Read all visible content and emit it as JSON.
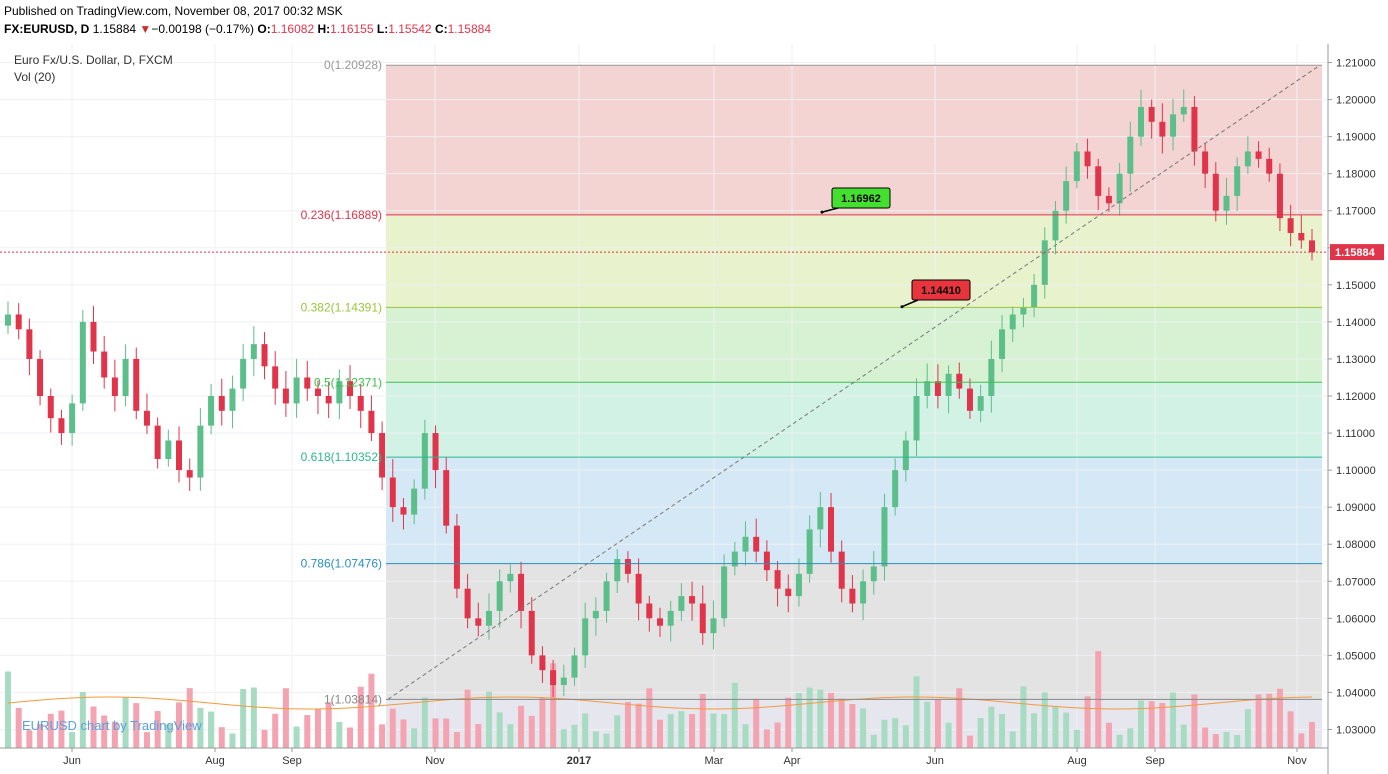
{
  "header": {
    "published": "Published on TradingView.com, November 08, 2017 00:32 MSK",
    "symbol": "FX:EURUSD, D",
    "last": "1.15884",
    "arrow": "▼",
    "change": "−0.00198 (−0.17%)",
    "o_label": "O:",
    "o": "1.16082",
    "h_label": "H:",
    "h": "1.16155",
    "l_label": "L:",
    "l": "1.15542",
    "c_label": "C:",
    "c": "1.15884"
  },
  "legend": {
    "title": "Euro Fx/U.S. Dollar, D, FXCM",
    "vol": "Vol (20)"
  },
  "watermark": "EURUSD chart by TradingView",
  "colors": {
    "up": "#5cbf8a",
    "down": "#e0344a",
    "vol_up": "#a7dcc2",
    "vol_down": "#f4a3b0",
    "ma": "#f59a3c",
    "price_line": "#e0344a"
  },
  "chart_data": {
    "type": "candlestick",
    "title": "Euro Fx/U.S. Dollar, D, FXCM",
    "ylim": [
      1.025,
      1.215
    ],
    "y_ticks": [
      "1.21000",
      "1.20000",
      "1.19000",
      "1.18000",
      "1.17000",
      "1.16000",
      "1.15000",
      "1.14000",
      "1.13000",
      "1.12000",
      "1.11000",
      "1.10000",
      "1.09000",
      "1.08000",
      "1.07000",
      "1.06000",
      "1.05000",
      "1.04000",
      "1.03000"
    ],
    "x_labels": [
      "Jun",
      "Aug",
      "Sep",
      "Nov",
      "2017",
      "Mar",
      "Apr",
      "Jun",
      "Aug",
      "Sep",
      "Nov"
    ],
    "last_price": "1.15884",
    "fibonacci": [
      {
        "label": "0(1.20928)",
        "price": 1.20928,
        "color": "#9a9a9a"
      },
      {
        "label": "0.236(1.16889)",
        "price": 1.16889,
        "color": "#e0344a"
      },
      {
        "label": "0.382(1.14391)",
        "price": 1.14391,
        "color": "#9bc53d"
      },
      {
        "label": "0.5(1.12371)",
        "price": 1.12371,
        "color": "#3fbf4f"
      },
      {
        "label": "0.618(1.10352)",
        "price": 1.10352,
        "color": "#2db78b"
      },
      {
        "label": "0.786(1.07476)",
        "price": 1.07476,
        "color": "#2a8fbf"
      },
      {
        "label": "1(1.03814)",
        "price": 1.03814,
        "color": "#888888"
      }
    ],
    "callouts": [
      {
        "text": "1.16962",
        "price": 1.16962,
        "color": "#44e02f"
      },
      {
        "text": "1.14410",
        "price": 1.1441,
        "color": "#e8343c"
      }
    ],
    "closes": [
      1.142,
      1.138,
      1.13,
      1.12,
      1.114,
      1.11,
      1.118,
      1.14,
      1.132,
      1.125,
      1.12,
      1.13,
      1.116,
      1.112,
      1.103,
      1.108,
      1.1,
      1.098,
      1.112,
      1.12,
      1.116,
      1.122,
      1.13,
      1.134,
      1.128,
      1.122,
      1.118,
      1.125,
      1.122,
      1.12,
      1.118,
      1.124,
      1.12,
      1.116,
      1.11,
      1.098,
      1.09,
      1.088,
      1.095,
      1.11,
      1.1,
      1.085,
      1.068,
      1.06,
      1.058,
      1.062,
      1.07,
      1.072,
      1.062,
      1.05,
      1.046,
      1.042,
      1.044,
      1.05,
      1.06,
      1.062,
      1.07,
      1.076,
      1.072,
      1.064,
      1.06,
      1.058,
      1.062,
      1.066,
      1.064,
      1.056,
      1.06,
      1.074,
      1.078,
      1.082,
      1.078,
      1.073,
      1.068,
      1.066,
      1.072,
      1.084,
      1.09,
      1.078,
      1.068,
      1.064,
      1.07,
      1.074,
      1.09,
      1.1,
      1.108,
      1.12,
      1.124,
      1.12,
      1.126,
      1.122,
      1.116,
      1.12,
      1.13,
      1.138,
      1.142,
      1.144,
      1.15,
      1.162,
      1.17,
      1.178,
      1.186,
      1.182,
      1.174,
      1.172,
      1.18,
      1.19,
      1.198,
      1.194,
      1.19,
      1.196,
      1.198,
      1.186,
      1.18,
      1.17,
      1.174,
      1.182,
      1.186,
      1.184,
      1.18,
      1.168,
      1.164,
      1.162,
      1.1588
    ]
  }
}
